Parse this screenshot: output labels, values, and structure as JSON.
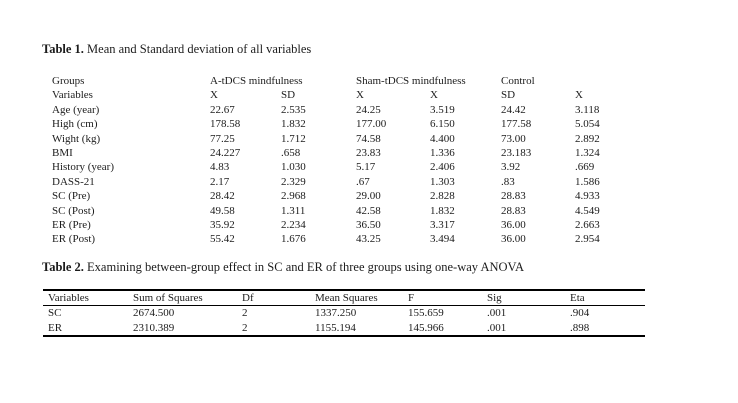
{
  "table1": {
    "title_bold": "Table 1.",
    "title_rest": " Mean and Standard deviation of all variables",
    "group_header": {
      "col1": "Groups",
      "group1": "A-tDCS mindfulness",
      "group2": "Sham-tDCS mindfulness",
      "group3": "Control"
    },
    "sub_header_rows": [
      [
        "Variables",
        "X",
        "SD",
        "X",
        "X",
        "SD",
        "X"
      ]
    ],
    "rows": [
      [
        "Age (year)",
        "22.67",
        "2.535",
        "24.25",
        "3.519",
        "24.42",
        "3.118"
      ],
      [
        "High (cm)",
        "178.58",
        "1.832",
        "177.00",
        "6.150",
        "177.58",
        "5.054"
      ],
      [
        "Wight (kg)",
        "77.25",
        "1.712",
        "74.58",
        "4.400",
        "73.00",
        "2.892"
      ],
      [
        "BMI",
        "24.227",
        ".658",
        "23.83",
        "1.336",
        "23.183",
        "1.324"
      ],
      [
        "History (year)",
        "4.83",
        "1.030",
        "5.17",
        "2.406",
        "3.92",
        ".669"
      ],
      [
        "DASS-21",
        "2.17",
        "2.329",
        ".67",
        "1.303",
        ".83",
        "1.586"
      ],
      [
        "SC (Pre)",
        "28.42",
        "2.968",
        "29.00",
        "2.828",
        "28.83",
        "4.933"
      ],
      [
        "SC (Post)",
        "49.58",
        "1.311",
        "42.58",
        "1.832",
        "28.83",
        "4.549"
      ],
      [
        "ER (Pre)",
        "35.92",
        "2.234",
        "36.50",
        "3.317",
        "36.00",
        "2.663"
      ],
      [
        "ER (Post)",
        "55.42",
        "1.676",
        "43.25",
        "3.494",
        "36.00",
        "2.954"
      ]
    ]
  },
  "table2": {
    "title_bold": "Table 2.",
    "title_rest": " Examining between-group effect in SC and ER of three groups using one-way ANOVA",
    "header_rows": [
      [
        "Variables",
        "Sum of Squares",
        "Df",
        "Mean Squares",
        "F",
        "Sig",
        "Eta"
      ]
    ],
    "rows": [
      [
        "SC",
        "2674.500",
        "2",
        "1337.250",
        "155.659",
        ".001",
        ".904"
      ],
      [
        "ER",
        "2310.389",
        "2",
        "1155.194",
        "145.966",
        ".001",
        ".898"
      ]
    ]
  }
}
